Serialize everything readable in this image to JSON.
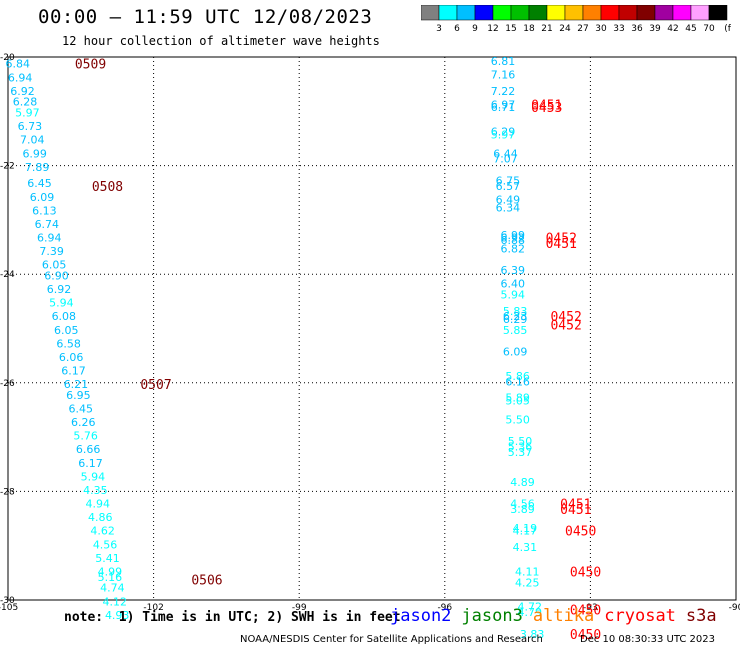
{
  "title": "00:00 – 11:59 UTC 12/08/2023",
  "subtitle": "12 hour collection of altimeter wave heights",
  "colorbar": {
    "ticks": [
      "3",
      "6",
      "9",
      "12",
      "15",
      "18",
      "21",
      "24",
      "27",
      "30",
      "33",
      "36",
      "39",
      "42",
      "45",
      "70"
    ],
    "unit": "(ft)",
    "colors": [
      "#808080",
      "#00ffff",
      "#00bfff",
      "#0000ff",
      "#00ff00",
      "#00c000",
      "#008000",
      "#ffff00",
      "#ffc000",
      "#ff8000",
      "#ff0000",
      "#c00000",
      "#800000",
      "#a000a0",
      "#ff00ff",
      "#ffa0ff",
      "#000000"
    ]
  },
  "axes": {
    "lon_labels": [
      "-105",
      "-102",
      "-99",
      "-96",
      "-93",
      "-90"
    ],
    "lat_labels": [
      "-20",
      "-22",
      "-24",
      "-26",
      "-28",
      "-30"
    ]
  },
  "notes": "note:  1) Time is in UTC; 2) SWH is in feet",
  "legend": [
    {
      "name": "jason2",
      "color": "#0000ff"
    },
    {
      "name": "jason3",
      "color": "#008000"
    },
    {
      "name": "altika",
      "color": "#ff8000"
    },
    {
      "name": "cryosat",
      "color": "#ff0000"
    },
    {
      "name": "s3a",
      "color": "#800000"
    }
  ],
  "credit": "NOAA/NESDIS Center for Satellite Applications and Research",
  "timestamp": "Dec 10 08:30:33 UTC 2023",
  "track_colors": {
    "low": "#00bfff",
    "high": "#00ffff",
    "time_s3a": "#800000",
    "time_cryosat": "#ff0000"
  },
  "chart_data": {
    "type": "scatter",
    "xlabel": "",
    "ylabel": "",
    "xlim": [
      -105,
      -90
    ],
    "ylim": [
      -30,
      -20
    ],
    "grid": true,
    "tracks": [
      {
        "satellite": "s3a",
        "points": [
          {
            "lon": -104.8,
            "lat": -20.05,
            "swh": "6.84"
          },
          {
            "lon": -104.75,
            "lat": -20.3,
            "swh": "6.94"
          },
          {
            "lon": -104.7,
            "lat": -20.55,
            "swh": "6.92"
          },
          {
            "lon": -104.65,
            "lat": -20.75,
            "swh": "6.28"
          },
          {
            "lon": -104.6,
            "lat": -20.95,
            "swh": "5.97"
          },
          {
            "lon": -104.55,
            "lat": -21.2,
            "swh": "6.73"
          },
          {
            "lon": -104.5,
            "lat": -21.45,
            "swh": "7.04"
          },
          {
            "lon": -104.45,
            "lat": -21.7,
            "swh": "6.99"
          },
          {
            "lon": -104.4,
            "lat": -21.95,
            "swh": "7.89"
          },
          {
            "lon": -104.35,
            "lat": -22.25,
            "swh": "6.45"
          },
          {
            "lon": -104.3,
            "lat": -22.5,
            "swh": "6.09"
          },
          {
            "lon": -104.25,
            "lat": -22.75,
            "swh": "6.13"
          },
          {
            "lon": -104.2,
            "lat": -23.0,
            "swh": "6.74"
          },
          {
            "lon": -104.15,
            "lat": -23.25,
            "swh": "6.94"
          },
          {
            "lon": -104.1,
            "lat": -23.5,
            "swh": "7.39"
          },
          {
            "lon": -104.05,
            "lat": -23.75,
            "swh": "6.05"
          },
          {
            "lon": -104.0,
            "lat": -23.95,
            "swh": "6.90"
          },
          {
            "lon": -103.95,
            "lat": -24.2,
            "swh": "6.92"
          },
          {
            "lon": -103.9,
            "lat": -24.45,
            "swh": "5.94"
          },
          {
            "lon": -103.85,
            "lat": -24.7,
            "swh": "6.08"
          },
          {
            "lon": -103.8,
            "lat": -24.95,
            "swh": "6.05"
          },
          {
            "lon": -103.75,
            "lat": -25.2,
            "swh": "6.58"
          },
          {
            "lon": -103.7,
            "lat": -25.45,
            "swh": "6.06"
          },
          {
            "lon": -103.65,
            "lat": -25.7,
            "swh": "6.17"
          },
          {
            "lon": -103.6,
            "lat": -25.95,
            "swh": "6.21"
          },
          {
            "lon": -103.55,
            "lat": -26.15,
            "swh": "6.95"
          },
          {
            "lon": -103.5,
            "lat": -26.4,
            "swh": "6.45"
          },
          {
            "lon": -103.45,
            "lat": -26.65,
            "swh": "6.26"
          },
          {
            "lon": -103.4,
            "lat": -26.9,
            "swh": "5.76"
          },
          {
            "lon": -103.35,
            "lat": -27.15,
            "swh": "6.66"
          },
          {
            "lon": -103.3,
            "lat": -27.4,
            "swh": "6.17"
          },
          {
            "lon": -103.25,
            "lat": -27.65,
            "swh": "5.94"
          },
          {
            "lon": -103.2,
            "lat": -27.9,
            "swh": "4.35"
          },
          {
            "lon": -103.15,
            "lat": -28.15,
            "swh": "4.94"
          },
          {
            "lon": -103.1,
            "lat": -28.4,
            "swh": "4.86"
          },
          {
            "lon": -103.05,
            "lat": -28.65,
            "swh": "4.62"
          },
          {
            "lon": -103.0,
            "lat": -28.9,
            "swh": "4.56"
          },
          {
            "lon": -102.95,
            "lat": -29.15,
            "swh": "5.41"
          },
          {
            "lon": -102.9,
            "lat": -29.4,
            "swh": "4.99"
          },
          {
            "lon": -102.9,
            "lat": -29.5,
            "swh": "5.16"
          },
          {
            "lon": -102.85,
            "lat": -29.7,
            "swh": "4.74"
          },
          {
            "lon": -102.8,
            "lat": -29.95,
            "swh": "4.12"
          },
          {
            "lon": -102.75,
            "lat": -30.2,
            "swh": "4.93"
          }
        ],
        "times": [
          {
            "lon": -103.3,
            "lat": -20.05,
            "label": "0509"
          },
          {
            "lon": -102.95,
            "lat": -22.3,
            "label": "0508"
          },
          {
            "lon": -101.95,
            "lat": -25.95,
            "label": "0507"
          },
          {
            "lon": -100.9,
            "lat": -29.55,
            "label": "0506"
          }
        ]
      },
      {
        "satellite": "cryosat",
        "points": [
          {
            "lon": -94.8,
            "lat": -20.0,
            "swh": "6.81"
          },
          {
            "lon": -94.8,
            "lat": -20.25,
            "swh": "7.16"
          },
          {
            "lon": -94.8,
            "lat": -20.55,
            "swh": "7.22"
          },
          {
            "lon": -94.8,
            "lat": -20.8,
            "swh": "6.97"
          },
          {
            "lon": -94.8,
            "lat": -20.85,
            "swh": "6.71"
          },
          {
            "lon": -94.8,
            "lat": -21.3,
            "swh": "6.29"
          },
          {
            "lon": -94.8,
            "lat": -21.35,
            "swh": "5.97"
          },
          {
            "lon": -94.75,
            "lat": -21.7,
            "swh": "6.44"
          },
          {
            "lon": -94.75,
            "lat": -21.8,
            "swh": "7.07"
          },
          {
            "lon": -94.7,
            "lat": -22.2,
            "swh": "6.75"
          },
          {
            "lon": -94.7,
            "lat": -22.3,
            "swh": "6.57"
          },
          {
            "lon": -94.7,
            "lat": -22.55,
            "swh": "6.49"
          },
          {
            "lon": -94.7,
            "lat": -22.7,
            "swh": "6.34"
          },
          {
            "lon": -94.6,
            "lat": -23.2,
            "swh": "6.99"
          },
          {
            "lon": -94.6,
            "lat": -23.25,
            "swh": "6.92"
          },
          {
            "lon": -94.6,
            "lat": -23.3,
            "swh": "6.88"
          },
          {
            "lon": -94.6,
            "lat": -23.45,
            "swh": "6.82"
          },
          {
            "lon": -94.6,
            "lat": -23.85,
            "swh": "6.39"
          },
          {
            "lon": -94.6,
            "lat": -24.1,
            "swh": "6.40"
          },
          {
            "lon": -94.6,
            "lat": -24.3,
            "swh": "5.94"
          },
          {
            "lon": -94.55,
            "lat": -24.6,
            "swh": "5.83"
          },
          {
            "lon": -94.55,
            "lat": -24.7,
            "swh": "6.23"
          },
          {
            "lon": -94.55,
            "lat": -24.75,
            "swh": "6.29"
          },
          {
            "lon": -94.55,
            "lat": -24.95,
            "swh": "5.85"
          },
          {
            "lon": -94.55,
            "lat": -25.35,
            "swh": "6.09"
          },
          {
            "lon": -94.5,
            "lat": -25.8,
            "swh": "5.86"
          },
          {
            "lon": -94.5,
            "lat": -25.9,
            "swh": "6.16"
          },
          {
            "lon": -94.5,
            "lat": -26.2,
            "swh": "5.89"
          },
          {
            "lon": -94.5,
            "lat": -26.25,
            "swh": "5.05"
          },
          {
            "lon": -94.5,
            "lat": -26.6,
            "swh": "5.50"
          },
          {
            "lon": -94.45,
            "lat": -27.0,
            "swh": "5.50"
          },
          {
            "lon": -94.45,
            "lat": -27.1,
            "swh": "5.36"
          },
          {
            "lon": -94.45,
            "lat": -27.2,
            "swh": "5.37"
          },
          {
            "lon": -94.4,
            "lat": -27.75,
            "swh": "4.89"
          },
          {
            "lon": -94.4,
            "lat": -28.15,
            "swh": "4.56"
          },
          {
            "lon": -94.4,
            "lat": -28.25,
            "swh": "3.89"
          },
          {
            "lon": -94.35,
            "lat": -28.6,
            "swh": "4.19"
          },
          {
            "lon": -94.35,
            "lat": -28.65,
            "swh": "4.17"
          },
          {
            "lon": -94.35,
            "lat": -28.95,
            "swh": "4.31"
          },
          {
            "lon": -94.3,
            "lat": -29.4,
            "swh": "4.11"
          },
          {
            "lon": -94.3,
            "lat": -29.6,
            "swh": "4.25"
          },
          {
            "lon": -94.25,
            "lat": -30.05,
            "swh": "4.72"
          },
          {
            "lon": -94.25,
            "lat": -30.15,
            "swh": "4.79"
          },
          {
            "lon": -94.2,
            "lat": -30.55,
            "swh": "3.83"
          }
        ],
        "times": [
          {
            "lon": -93.9,
            "lat": -20.8,
            "label": "0451"
          },
          {
            "lon": -93.9,
            "lat": -20.85,
            "label": "0453"
          },
          {
            "lon": -93.6,
            "lat": -23.25,
            "label": "0452"
          },
          {
            "lon": -93.6,
            "lat": -23.35,
            "label": "0451"
          },
          {
            "lon": -93.5,
            "lat": -24.7,
            "label": "0452"
          },
          {
            "lon": -93.5,
            "lat": -24.85,
            "label": "0452"
          },
          {
            "lon": -93.3,
            "lat": -28.15,
            "label": "0451"
          },
          {
            "lon": -93.3,
            "lat": -28.25,
            "label": "0451"
          },
          {
            "lon": -93.2,
            "lat": -28.65,
            "label": "0450"
          },
          {
            "lon": -93.1,
            "lat": -29.4,
            "label": "0450"
          },
          {
            "lon": -93.1,
            "lat": -30.1,
            "label": "0450"
          },
          {
            "lon": -93.1,
            "lat": -30.55,
            "label": "0450"
          }
        ]
      }
    ]
  }
}
